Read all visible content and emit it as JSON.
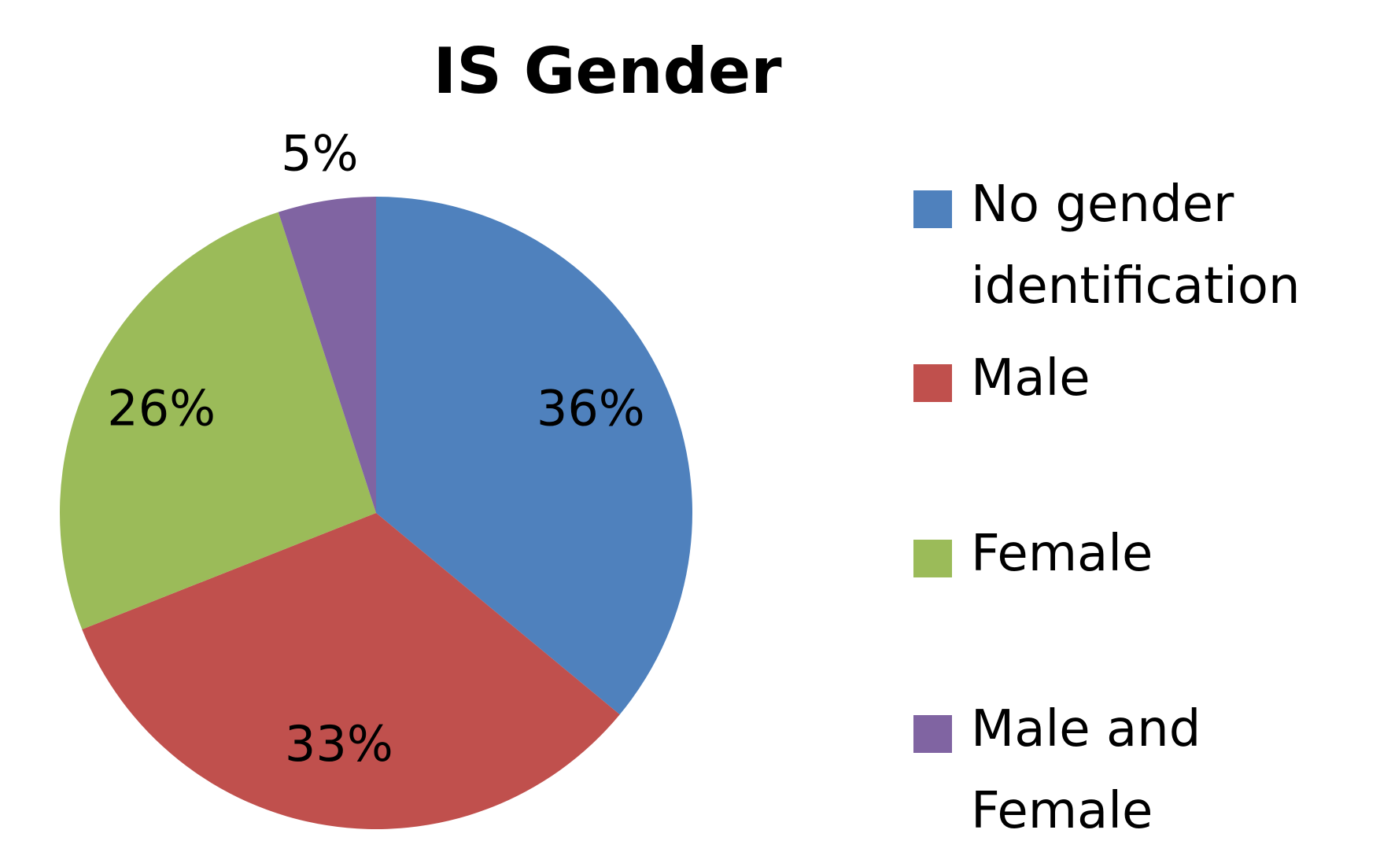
{
  "chart_data": {
    "type": "pie",
    "title": "IS Gender",
    "categories": [
      "No gender identification",
      "Male",
      "Female",
      "Male and Female"
    ],
    "values": [
      36,
      33,
      26,
      5
    ],
    "value_labels": [
      "36%",
      "33%",
      "26%",
      "5%"
    ],
    "colors": [
      "#4f81bd",
      "#c0504d",
      "#9bbb59",
      "#8064a2"
    ],
    "legend": "right"
  }
}
